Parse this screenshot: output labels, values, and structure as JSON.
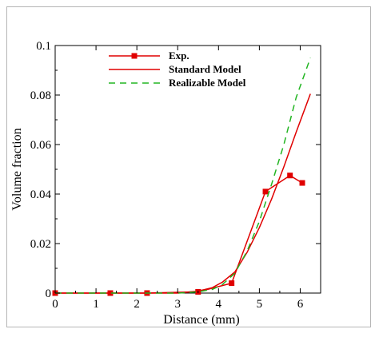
{
  "chart_data": {
    "type": "line",
    "xlabel": "Distance (mm)",
    "ylabel": "Volume fraction",
    "xlim": [
      0,
      6.5
    ],
    "ylim": [
      0,
      0.1
    ],
    "xticks": [
      0,
      1,
      2,
      3,
      4,
      5,
      6
    ],
    "yticks": [
      0,
      0.02,
      0.04,
      0.06,
      0.08,
      0.1
    ],
    "xtick_labels": [
      "0",
      "1",
      "2",
      "3",
      "4",
      "5",
      "6"
    ],
    "ytick_labels": [
      "0",
      "0.02",
      "0.04",
      "0.06",
      "0.08",
      "0.1"
    ],
    "grid": false,
    "legend_position": "top-left",
    "series": [
      {
        "name": "Exp.",
        "style": "line-with-square-markers",
        "color": "#e00000",
        "x": [
          0,
          1.35,
          2.25,
          3.5,
          4.32,
          5.15,
          5.75,
          6.05
        ],
        "y": [
          0,
          0,
          0,
          0.0005,
          0.004,
          0.041,
          0.0475,
          0.0445
        ]
      },
      {
        "name": "Standard Model",
        "style": "solid",
        "color": "#e00000",
        "x": [
          0,
          1,
          2,
          3,
          3.5,
          3.85,
          4.1,
          4.4,
          4.7,
          5.0,
          5.3,
          5.6,
          5.9,
          6.25
        ],
        "y": [
          0,
          0,
          0,
          0,
          0.0008,
          0.0022,
          0.0045,
          0.0085,
          0.0165,
          0.0265,
          0.038,
          0.051,
          0.065,
          0.0805
        ]
      },
      {
        "name": "Realizable Model",
        "style": "dashed",
        "color": "#22b522",
        "x": [
          0,
          1,
          2,
          3,
          3.5,
          3.85,
          4.1,
          4.4,
          4.7,
          5.0,
          5.3,
          5.6,
          5.9,
          6.25
        ],
        "y": [
          0,
          0,
          0,
          0,
          0.0005,
          0.0015,
          0.0035,
          0.008,
          0.017,
          0.029,
          0.044,
          0.06,
          0.079,
          0.095
        ]
      }
    ]
  }
}
